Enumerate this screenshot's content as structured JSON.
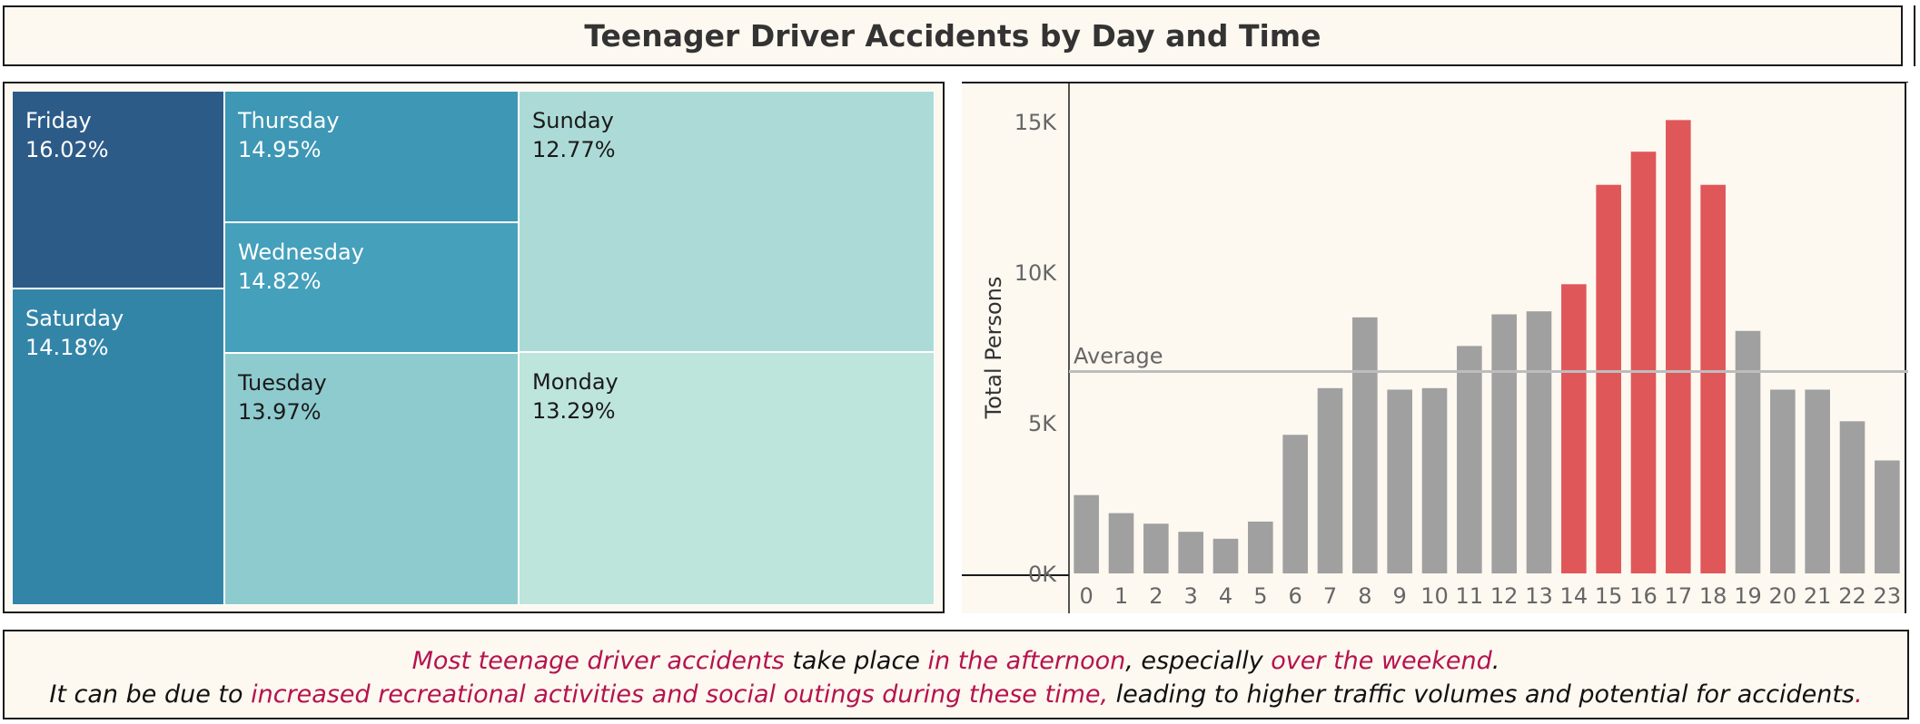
{
  "title": "Teenager Driver Accidents by Day and Time",
  "treemap": {
    "type": "treemap",
    "tiles": [
      {
        "day": "Friday",
        "pct": "16.02%",
        "color": "#2d5b87",
        "text_color": "#ffffff"
      },
      {
        "day": "Saturday",
        "pct": "14.18%",
        "color": "#3385a8",
        "text_color": "#ffffff"
      },
      {
        "day": "Thursday",
        "pct": "14.95%",
        "color": "#3d97b5",
        "text_color": "#ffffff"
      },
      {
        "day": "Wednesday",
        "pct": "14.82%",
        "color": "#45a0bc",
        "text_color": "#ffffff"
      },
      {
        "day": "Tuesday",
        "pct": "13.97%",
        "color": "#8ecbce",
        "text_color": "#1a1a1a"
      },
      {
        "day": "Sunday",
        "pct": "12.77%",
        "color": "#acdbd7",
        "text_color": "#1a1a1a"
      },
      {
        "day": "Monday",
        "pct": "13.29%",
        "color": "#bde5db",
        "text_color": "#1a1a1a"
      }
    ]
  },
  "chart_data": {
    "type": "bar",
    "ylabel": "Total Persons",
    "ylim": [
      0,
      15500
    ],
    "yticks": [
      "0K",
      "5K",
      "10K",
      "15K"
    ],
    "ytick_values": [
      0,
      5000,
      10000,
      15000
    ],
    "categories": [
      "0",
      "1",
      "2",
      "3",
      "4",
      "5",
      "6",
      "7",
      "8",
      "9",
      "10",
      "11",
      "12",
      "13",
      "14",
      "15",
      "16",
      "17",
      "18",
      "19",
      "20",
      "21",
      "22",
      "23"
    ],
    "values": [
      2600,
      2000,
      1650,
      1380,
      1150,
      1720,
      4600,
      6150,
      8500,
      6100,
      6150,
      7550,
      8600,
      8700,
      9600,
      12900,
      14000,
      15050,
      12900,
      8050,
      6100,
      6100,
      5050,
      3750
    ],
    "highlight": [
      false,
      false,
      false,
      false,
      false,
      false,
      false,
      false,
      false,
      false,
      false,
      false,
      false,
      false,
      true,
      true,
      true,
      true,
      true,
      false,
      false,
      false,
      false,
      false
    ],
    "reference_line": {
      "label": "Average",
      "value": 6700
    },
    "colors": {
      "bar": "#a0a0a0",
      "highlight": "#e05759",
      "reference": "#bdbdbd",
      "text": "#666666"
    }
  },
  "footer": {
    "line1": [
      {
        "text": "Most teenage driver accidents",
        "hl": true
      },
      {
        "text": " take place ",
        "hl": false
      },
      {
        "text": "in the afternoon",
        "hl": true
      },
      {
        "text": ", especially ",
        "hl": false
      },
      {
        "text": "over the weekend",
        "hl": true
      },
      {
        "text": ".",
        "hl": false
      }
    ],
    "line2": [
      {
        "text": "It can be due to ",
        "hl": false
      },
      {
        "text": "increased recreational activities and social outings during these time,",
        "hl": true
      },
      {
        "text": " leading to higher traffic volumes and potential for accidents",
        "hl": false
      },
      {
        "text": ".",
        "hl": true
      }
    ]
  }
}
